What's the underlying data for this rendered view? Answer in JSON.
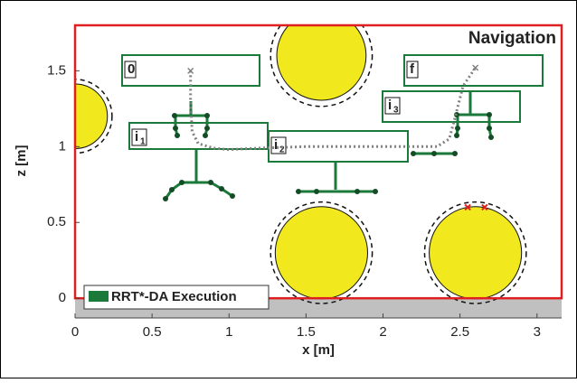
{
  "chart_data": {
    "type": "line",
    "title": "Navigation",
    "xlabel": "x [m]",
    "ylabel": "z [m]",
    "xlim": [
      0,
      3.16
    ],
    "ylim": [
      -0.13,
      1.8
    ],
    "xticks": [
      0,
      0.5,
      1,
      1.5,
      2,
      2.5,
      3
    ],
    "yticks": [
      0,
      0.5,
      1,
      1.5
    ],
    "legend": "lower left",
    "series": [
      {
        "name": "RRT*-DA Execution",
        "color": "#1b7a3a"
      }
    ],
    "path": {
      "color": "#808080",
      "x": [
        0.75,
        0.75,
        0.76,
        0.8,
        0.9,
        1.0,
        1.2,
        1.5,
        2.0,
        2.35,
        2.43,
        2.47,
        2.52,
        2.6
      ],
      "y": [
        1.5,
        1.3,
        1.1,
        1.02,
        0.99,
        0.98,
        0.99,
        1.0,
        1.0,
        1.0,
        1.05,
        1.2,
        1.4,
        1.52
      ]
    },
    "obstacles": {
      "color": "#f2e81e",
      "x": [
        0,
        1.6,
        1.6,
        2.6
      ],
      "y": [
        1.2,
        1.6,
        0.3,
        0.3
      ],
      "r": [
        0.21,
        0.29,
        0.3,
        0.3
      ],
      "margin_r": [
        0.24,
        0.33,
        0.33,
        0.33
      ]
    },
    "contacts": {
      "color": "#e02020",
      "x": [
        2.55,
        2.66
      ],
      "y": [
        0.6,
        0.6
      ]
    },
    "stances": [
      {
        "text": "0"
      },
      {
        "text": "i",
        "sub": "1"
      },
      {
        "text": "i",
        "sub": "2"
      },
      {
        "text": "i",
        "sub": "3"
      },
      {
        "text": "f"
      }
    ]
  }
}
